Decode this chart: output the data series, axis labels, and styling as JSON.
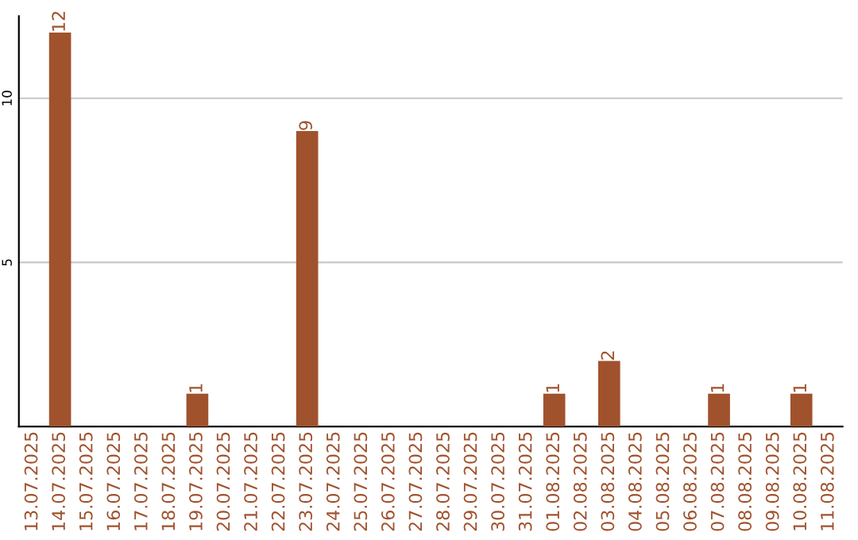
{
  "chart_data": {
    "type": "bar",
    "categories": [
      "13.07.2025",
      "14.07.2025",
      "15.07.2025",
      "16.07.2025",
      "17.07.2025",
      "18.07.2025",
      "19.07.2025",
      "20.07.2025",
      "21.07.2025",
      "22.07.2025",
      "23.07.2025",
      "24.07.2025",
      "25.07.2025",
      "26.07.2025",
      "27.07.2025",
      "28.07.2025",
      "29.07.2025",
      "30.07.2025",
      "31.07.2025",
      "01.08.2025",
      "02.08.2025",
      "03.08.2025",
      "04.08.2025",
      "05.08.2025",
      "06.08.2025",
      "07.08.2025",
      "08.08.2025",
      "09.08.2025",
      "10.08.2025",
      "11.08.2025"
    ],
    "values": [
      0,
      12,
      0,
      0,
      0,
      0,
      1,
      0,
      0,
      0,
      9,
      0,
      0,
      0,
      0,
      0,
      0,
      0,
      0,
      1,
      0,
      2,
      0,
      0,
      0,
      1,
      0,
      0,
      1,
      0
    ],
    "value_labels": [
      null,
      "12",
      null,
      null,
      null,
      null,
      "1",
      null,
      null,
      null,
      "9",
      null,
      null,
      null,
      null,
      null,
      null,
      null,
      null,
      "1",
      null,
      "2",
      null,
      null,
      null,
      "1",
      null,
      null,
      "1",
      null
    ],
    "color": "#a0522d",
    "ylim": [
      0,
      12.5
    ],
    "yticks": [
      5,
      10
    ],
    "grid": "y"
  }
}
